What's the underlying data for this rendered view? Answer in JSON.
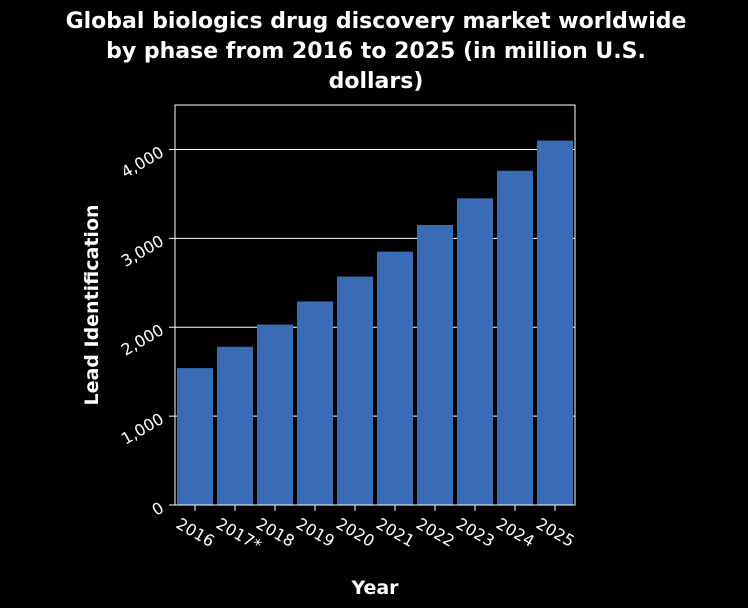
{
  "chart_data": {
    "type": "bar",
    "title_lines": [
      "Global biologics drug discovery market worldwide",
      "by phase from 2016 to 2025 (in million U.S.",
      "dollars)"
    ],
    "xlabel": "Year",
    "ylabel": "Lead Identification",
    "categories": [
      "2016",
      "2017*",
      "2018",
      "2019",
      "2020",
      "2021",
      "2022",
      "2023",
      "2024",
      "2025"
    ],
    "values": [
      1540,
      1780,
      2030,
      2290,
      2570,
      2850,
      3150,
      3450,
      3760,
      4100
    ],
    "ylim": [
      0,
      4500
    ],
    "yticks": [
      0,
      1000,
      2000,
      3000,
      4000
    ],
    "ytick_labels": [
      "0",
      "1,000",
      "2,000",
      "3,000",
      "4,000"
    ],
    "grid": true,
    "colors": {
      "bar": "#3a6cb5",
      "background": "#000000",
      "grid": "#ffffff",
      "text": "#ffffff"
    }
  }
}
